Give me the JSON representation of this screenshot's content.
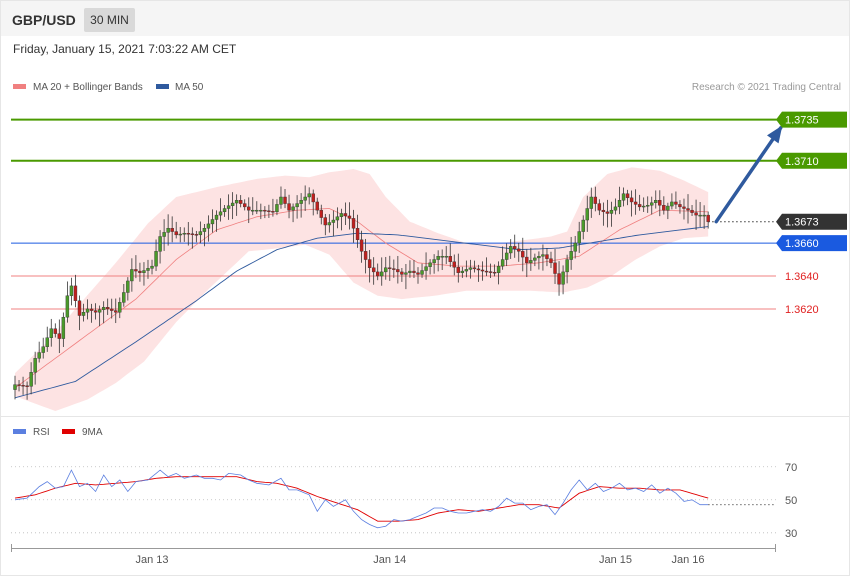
{
  "header": {
    "symbol": "GBP/USD",
    "timeframe": "30 MIN",
    "datetime": "Friday, January 15, 2021 7:03:22 AM CET"
  },
  "price_chart": {
    "legend": [
      {
        "label": "MA 20 + Bollinger Bands",
        "color": "#f08080"
      },
      {
        "label": "MA 50",
        "color": "#2f5a9e"
      }
    ],
    "credit": "Research © 2021 Trading Central"
  },
  "rsi_chart": {
    "legend": [
      {
        "label": "RSI",
        "color": "#5b7fe0"
      },
      {
        "label": "9MA",
        "color": "#e00000"
      }
    ]
  },
  "colors": {
    "up_candle": "#4a9a2a",
    "down_candle": "#c0201e",
    "resistance": "#4a9a00",
    "support": "#f08080",
    "pivot": "#1a5ae0",
    "arrow": "#2f5a9e",
    "current": "#333333"
  },
  "chart_data": [
    {
      "type": "candlestick",
      "y_range": [
        1.3558,
        1.3753
      ],
      "x_ticks": [
        "Jan 13",
        "Jan 14",
        "Jan 15",
        "Jan 16"
      ],
      "x_tick_candle": [
        34,
        93,
        149,
        167
      ],
      "levels": [
        {
          "value": 1.3735,
          "label": "1.3735",
          "kind": "resistance"
        },
        {
          "value": 1.371,
          "label": "1.3710",
          "kind": "resistance"
        },
        {
          "value": 1.3673,
          "label": "1.3673",
          "kind": "current"
        },
        {
          "value": 1.366,
          "label": "1.3660",
          "kind": "pivot"
        },
        {
          "value": 1.364,
          "label": "1.3640",
          "kind": "support"
        },
        {
          "value": 1.362,
          "label": "1.3620",
          "kind": "support"
        }
      ],
      "projection": {
        "from_candle": 174,
        "from_value": 1.3673,
        "to_candle": 190,
        "to_value": 1.373
      },
      "close_anchors": [
        [
          0,
          1.3574
        ],
        [
          3,
          1.3573
        ],
        [
          5,
          1.359
        ],
        [
          7,
          1.3597
        ],
        [
          9,
          1.3608
        ],
        [
          11,
          1.3602
        ],
        [
          13,
          1.3628
        ],
        [
          14,
          1.3634
        ],
        [
          16,
          1.3616
        ],
        [
          18,
          1.362
        ],
        [
          20,
          1.3618
        ],
        [
          22,
          1.3621
        ],
        [
          25,
          1.3618
        ],
        [
          27,
          1.363
        ],
        [
          29,
          1.3644
        ],
        [
          31,
          1.3642
        ],
        [
          34,
          1.3646
        ],
        [
          36,
          1.3664
        ],
        [
          38,
          1.3669
        ],
        [
          40,
          1.3665
        ],
        [
          42,
          1.3666
        ],
        [
          45,
          1.3665
        ],
        [
          47,
          1.3669
        ],
        [
          50,
          1.3677
        ],
        [
          52,
          1.3681
        ],
        [
          55,
          1.3686
        ],
        [
          58,
          1.368
        ],
        [
          61,
          1.368
        ],
        [
          64,
          1.3679
        ],
        [
          66,
          1.3688
        ],
        [
          68,
          1.368
        ],
        [
          70,
          1.3684
        ],
        [
          73,
          1.369
        ],
        [
          75,
          1.368
        ],
        [
          77,
          1.3671
        ],
        [
          79,
          1.3674
        ],
        [
          81,
          1.3678
        ],
        [
          83,
          1.3675
        ],
        [
          84,
          1.3669
        ],
        [
          86,
          1.3655
        ],
        [
          88,
          1.3645
        ],
        [
          90,
          1.364
        ],
        [
          92,
          1.3645
        ],
        [
          94,
          1.3644
        ],
        [
          96,
          1.3641
        ],
        [
          98,
          1.3643
        ],
        [
          100,
          1.3641
        ],
        [
          103,
          1.3648
        ],
        [
          105,
          1.3652
        ],
        [
          107,
          1.3652
        ],
        [
          110,
          1.3642
        ],
        [
          113,
          1.3645
        ],
        [
          116,
          1.3643
        ],
        [
          119,
          1.3642
        ],
        [
          121,
          1.365
        ],
        [
          123,
          1.3658
        ],
        [
          125,
          1.3655
        ],
        [
          127,
          1.3648
        ],
        [
          129,
          1.3651
        ],
        [
          131,
          1.3653
        ],
        [
          133,
          1.3648
        ],
        [
          135,
          1.3635
        ],
        [
          137,
          1.365
        ],
        [
          139,
          1.366
        ],
        [
          141,
          1.3674
        ],
        [
          143,
          1.3688
        ],
        [
          145,
          1.368
        ],
        [
          147,
          1.3678
        ],
        [
          149,
          1.3682
        ],
        [
          151,
          1.369
        ],
        [
          153,
          1.3685
        ],
        [
          155,
          1.3682
        ],
        [
          157,
          1.3683
        ],
        [
          159,
          1.3686
        ],
        [
          161,
          1.368
        ],
        [
          163,
          1.3685
        ],
        [
          165,
          1.3682
        ],
        [
          167,
          1.368
        ],
        [
          169,
          1.3677
        ],
        [
          171,
          1.3677
        ],
        [
          172,
          1.3673
        ]
      ],
      "ma20_anchors": [
        [
          0,
          1.3572
        ],
        [
          10,
          1.359
        ],
        [
          20,
          1.3608
        ],
        [
          30,
          1.3626
        ],
        [
          40,
          1.365
        ],
        [
          50,
          1.3668
        ],
        [
          60,
          1.3676
        ],
        [
          70,
          1.368
        ],
        [
          78,
          1.3681
        ],
        [
          85,
          1.3673
        ],
        [
          92,
          1.366
        ],
        [
          100,
          1.3648
        ],
        [
          110,
          1.3646
        ],
        [
          120,
          1.3646
        ],
        [
          130,
          1.3648
        ],
        [
          140,
          1.3652
        ],
        [
          150,
          1.3668
        ],
        [
          160,
          1.368
        ],
        [
          172,
          1.3679
        ]
      ],
      "ma50_anchors": [
        [
          0,
          1.3566
        ],
        [
          15,
          1.3576
        ],
        [
          30,
          1.36
        ],
        [
          45,
          1.3625
        ],
        [
          55,
          1.3643
        ],
        [
          65,
          1.3656
        ],
        [
          75,
          1.3663
        ],
        [
          85,
          1.3666
        ],
        [
          95,
          1.3665
        ],
        [
          105,
          1.3662
        ],
        [
          115,
          1.3659
        ],
        [
          125,
          1.3656
        ],
        [
          135,
          1.3657
        ],
        [
          145,
          1.3661
        ],
        [
          155,
          1.3665
        ],
        [
          165,
          1.3668
        ],
        [
          172,
          1.367
        ]
      ],
      "bb_upper_anchors": [
        [
          0,
          1.3581
        ],
        [
          8,
          1.36
        ],
        [
          15,
          1.362
        ],
        [
          25,
          1.3648
        ],
        [
          33,
          1.3672
        ],
        [
          40,
          1.3688
        ],
        [
          50,
          1.3694
        ],
        [
          60,
          1.3699
        ],
        [
          67,
          1.3701
        ],
        [
          73,
          1.37
        ],
        [
          78,
          1.3703
        ],
        [
          84,
          1.3705
        ],
        [
          88,
          1.3702
        ],
        [
          92,
          1.3688
        ],
        [
          98,
          1.3673
        ],
        [
          105,
          1.3666
        ],
        [
          112,
          1.366
        ],
        [
          120,
          1.366
        ],
        [
          127,
          1.3662
        ],
        [
          133,
          1.3664
        ],
        [
          137,
          1.3667
        ],
        [
          141,
          1.3688
        ],
        [
          147,
          1.3702
        ],
        [
          153,
          1.3706
        ],
        [
          160,
          1.3704
        ],
        [
          166,
          1.3698
        ],
        [
          172,
          1.3691
        ]
      ],
      "bb_lower_anchors": [
        [
          0,
          1.3567
        ],
        [
          10,
          1.3558
        ],
        [
          18,
          1.3565
        ],
        [
          25,
          1.3575
        ],
        [
          32,
          1.3588
        ],
        [
          40,
          1.3612
        ],
        [
          48,
          1.3632
        ],
        [
          58,
          1.3655
        ],
        [
          66,
          1.3657
        ],
        [
          72,
          1.3659
        ],
        [
          78,
          1.3653
        ],
        [
          84,
          1.3636
        ],
        [
          90,
          1.3628
        ],
        [
          96,
          1.3626
        ],
        [
          104,
          1.3628
        ],
        [
          112,
          1.3631
        ],
        [
          120,
          1.3631
        ],
        [
          128,
          1.3631
        ],
        [
          136,
          1.363
        ],
        [
          142,
          1.3633
        ],
        [
          148,
          1.364
        ],
        [
          154,
          1.365
        ],
        [
          160,
          1.3658
        ],
        [
          166,
          1.3663
        ],
        [
          172,
          1.3664
        ]
      ]
    },
    {
      "type": "line",
      "y_range": [
        22,
        85
      ],
      "y_ticks": [
        70,
        50,
        30
      ],
      "rsi_anchors": [
        [
          0,
          50
        ],
        [
          3,
          51
        ],
        [
          6,
          58
        ],
        [
          8,
          61
        ],
        [
          10,
          57
        ],
        [
          12,
          58
        ],
        [
          14,
          68
        ],
        [
          16,
          58
        ],
        [
          18,
          60
        ],
        [
          20,
          55
        ],
        [
          22,
          65
        ],
        [
          24,
          58
        ],
        [
          26,
          62
        ],
        [
          28,
          55
        ],
        [
          30,
          61
        ],
        [
          33,
          62
        ],
        [
          36,
          68
        ],
        [
          38,
          64
        ],
        [
          40,
          66
        ],
        [
          42,
          63
        ],
        [
          45,
          65
        ],
        [
          47,
          63
        ],
        [
          49,
          63
        ],
        [
          51,
          62
        ],
        [
          53,
          66
        ],
        [
          56,
          65
        ],
        [
          58,
          62
        ],
        [
          60,
          60
        ],
        [
          63,
          59
        ],
        [
          66,
          63
        ],
        [
          68,
          56
        ],
        [
          70,
          56
        ],
        [
          73,
          53
        ],
        [
          75,
          43
        ],
        [
          77,
          50
        ],
        [
          79,
          46
        ],
        [
          82,
          50
        ],
        [
          84,
          43
        ],
        [
          86,
          38
        ],
        [
          88,
          35
        ],
        [
          90,
          33
        ],
        [
          92,
          34
        ],
        [
          94,
          38
        ],
        [
          96,
          37
        ],
        [
          98,
          38
        ],
        [
          100,
          40
        ],
        [
          102,
          42
        ],
        [
          104,
          45
        ],
        [
          106,
          45
        ],
        [
          108,
          43
        ],
        [
          110,
          42
        ],
        [
          112,
          42
        ],
        [
          114,
          43
        ],
        [
          116,
          44
        ],
        [
          118,
          43
        ],
        [
          120,
          46
        ],
        [
          122,
          51
        ],
        [
          124,
          48
        ],
        [
          126,
          48
        ],
        [
          128,
          44
        ],
        [
          130,
          46
        ],
        [
          132,
          47
        ],
        [
          134,
          41
        ],
        [
          136,
          48
        ],
        [
          138,
          56
        ],
        [
          140,
          62
        ],
        [
          142,
          56
        ],
        [
          144,
          60
        ],
        [
          146,
          55
        ],
        [
          148,
          57
        ],
        [
          150,
          60
        ],
        [
          152,
          56
        ],
        [
          154,
          57
        ],
        [
          156,
          55
        ],
        [
          158,
          59
        ],
        [
          160,
          54
        ],
        [
          162,
          57
        ],
        [
          164,
          54
        ],
        [
          166,
          49
        ],
        [
          168,
          50
        ],
        [
          170,
          47
        ],
        [
          172,
          47
        ]
      ],
      "ma9_anchors": [
        [
          0,
          51
        ],
        [
          5,
          53
        ],
        [
          10,
          57
        ],
        [
          15,
          60
        ],
        [
          20,
          59
        ],
        [
          25,
          60
        ],
        [
          30,
          61
        ],
        [
          35,
          63
        ],
        [
          40,
          64
        ],
        [
          45,
          64
        ],
        [
          50,
          64
        ],
        [
          55,
          64
        ],
        [
          60,
          61
        ],
        [
          65,
          60
        ],
        [
          70,
          57
        ],
        [
          75,
          52
        ],
        [
          80,
          48
        ],
        [
          85,
          44
        ],
        [
          90,
          37
        ],
        [
          95,
          37
        ],
        [
          100,
          38
        ],
        [
          105,
          42
        ],
        [
          110,
          44
        ],
        [
          115,
          43
        ],
        [
          120,
          45
        ],
        [
          125,
          47
        ],
        [
          130,
          47
        ],
        [
          135,
          45
        ],
        [
          140,
          54
        ],
        [
          145,
          58
        ],
        [
          150,
          57
        ],
        [
          155,
          57
        ],
        [
          160,
          56
        ],
        [
          165,
          56
        ],
        [
          172,
          51
        ]
      ]
    }
  ]
}
